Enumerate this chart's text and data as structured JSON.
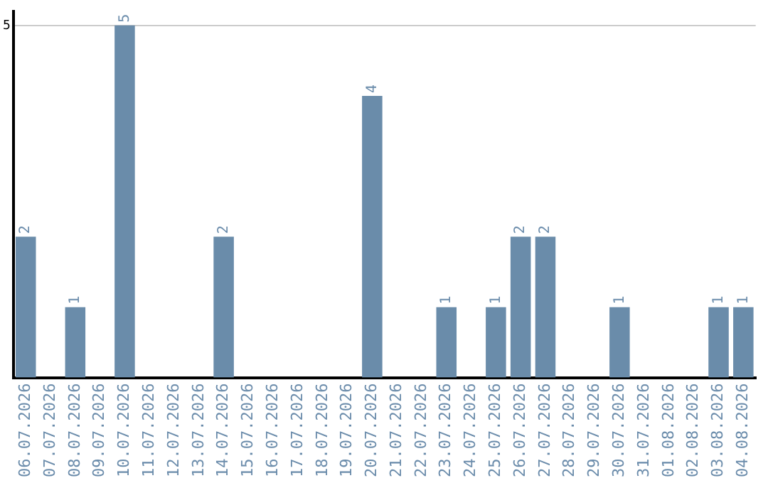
{
  "chart_data": {
    "type": "bar",
    "categories": [
      "06.07.2026",
      "07.07.2026",
      "08.07.2026",
      "09.07.2026",
      "10.07.2026",
      "11.07.2026",
      "12.07.2026",
      "13.07.2026",
      "14.07.2026",
      "15.07.2026",
      "16.07.2026",
      "17.07.2026",
      "18.07.2026",
      "19.07.2026",
      "20.07.2026",
      "21.07.2026",
      "22.07.2026",
      "23.07.2026",
      "24.07.2026",
      "25.07.2026",
      "26.07.2026",
      "27.07.2026",
      "28.07.2026",
      "29.07.2026",
      "30.07.2026",
      "31.07.2026",
      "01.08.2026",
      "02.08.2026",
      "03.08.2026",
      "04.08.2026"
    ],
    "values": [
      2,
      0,
      1,
      0,
      5,
      0,
      0,
      0,
      2,
      0,
      0,
      0,
      0,
      0,
      4,
      0,
      0,
      1,
      0,
      1,
      2,
      2,
      0,
      0,
      1,
      0,
      0,
      0,
      1,
      1
    ],
    "value_labels": [
      "2",
      null,
      "1",
      null,
      "5",
      null,
      null,
      null,
      "2",
      null,
      null,
      null,
      null,
      null,
      "4",
      null,
      null,
      "1",
      null,
      "1",
      "2",
      "2",
      null,
      null,
      "1",
      null,
      null,
      null,
      "1",
      "1"
    ],
    "color": "#6a8caa",
    "ylim": [
      0,
      5.2
    ],
    "yticks": [
      5
    ],
    "grid": "y",
    "legend": false
  }
}
